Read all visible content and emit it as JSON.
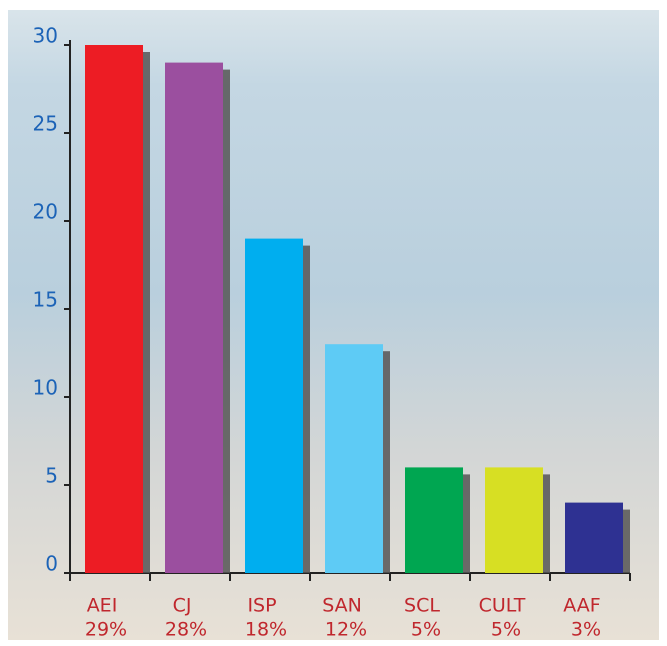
{
  "chart_data": {
    "type": "bar",
    "categories": [
      "AEI",
      "CJ",
      "ISP",
      "SAN",
      "SCL",
      "CULT",
      "AAF"
    ],
    "shares": [
      "29%",
      "28%",
      "18%",
      "12%",
      "5%",
      "5%",
      "3%"
    ],
    "values": [
      30,
      29,
      19,
      13,
      6,
      6,
      4
    ],
    "colors": [
      "#ed1c24",
      "#9b4f9f",
      "#00aeef",
      "#5ecbf5",
      "#00a651",
      "#d7df23",
      "#2e3192"
    ],
    "ylim": [
      0,
      30
    ],
    "yticks": [
      0,
      5,
      10,
      15,
      20,
      25,
      30
    ]
  }
}
